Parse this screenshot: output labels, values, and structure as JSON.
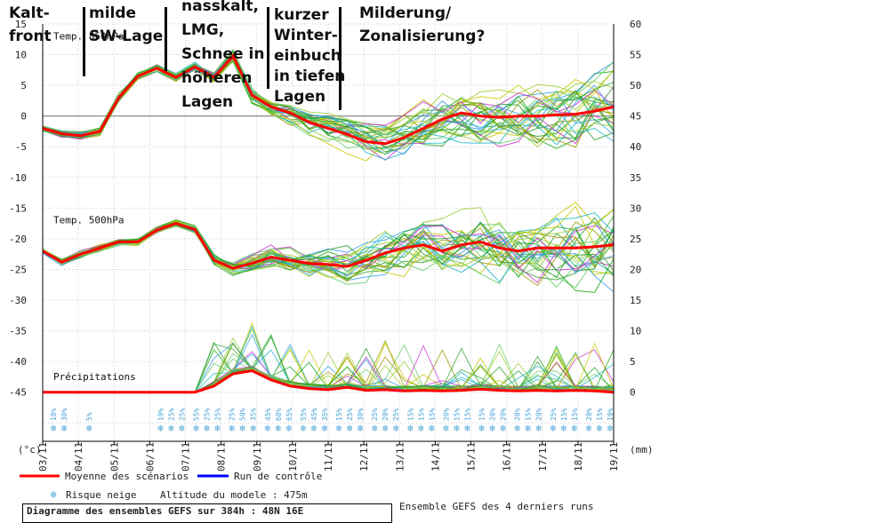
{
  "chart_data": {
    "type": "line",
    "title": "",
    "x": [
      "03/11",
      "04/11",
      "05/11",
      "06/11",
      "07/11",
      "08/11",
      "09/11",
      "10/11",
      "11/11",
      "12/11",
      "13/11",
      "14/11",
      "15/11",
      "16/11",
      "17/11",
      "18/11",
      "19/11"
    ],
    "left_axis": {
      "unit": "(°c)",
      "ylim": [
        -53,
        15
      ],
      "ticks": [
        15,
        10,
        5,
        0,
        -5,
        -10,
        -15,
        -20,
        -25,
        -30,
        -35,
        -40,
        -45
      ]
    },
    "right_axis": {
      "unit": "(mm)",
      "ticks": [
        60,
        55,
        50,
        45,
        40,
        35,
        30,
        25,
        20,
        15,
        10,
        5,
        0
      ]
    },
    "x_unit": "",
    "grid": true,
    "panels": [
      {
        "label": "Temp. 850hPa"
      },
      {
        "label": "Temp. 500hPa"
      },
      {
        "label": "Précipitations"
      }
    ],
    "series": [
      {
        "name": "Moyenne des scénarios",
        "color": "#ff0000",
        "t850": [
          -2,
          -2.9,
          -3.2,
          -2.5,
          3,
          6.5,
          7.8,
          6.3,
          8,
          6.3,
          9.8,
          3.4,
          1.5,
          0.5,
          -1,
          -2,
          -3,
          -4.2,
          -4.5,
          -3.5,
          -2,
          -0.5,
          0.5,
          0,
          -0.2,
          0,
          0,
          0.2,
          0.3,
          0.8,
          1.5
        ],
        "t500": [
          -22,
          -23.8,
          -22.5,
          -21.5,
          -20.5,
          -20.5,
          -18.6,
          -17.5,
          -18.5,
          -23.5,
          -24.8,
          -24,
          -23,
          -23.5,
          -24,
          -24.2,
          -24.5,
          -23.5,
          -22.3,
          -21.5,
          -21,
          -22,
          -21,
          -20.5,
          -21.5,
          -22,
          -21.5,
          -21.5,
          -21.5,
          -21.3,
          -21
        ],
        "precip_mm": [
          0,
          0,
          0,
          0,
          0,
          0,
          0,
          0,
          0,
          1,
          3,
          3.5,
          2,
          1,
          0.6,
          0.4,
          0.8,
          0.3,
          0.4,
          0.2,
          0.3,
          0.2,
          0.3,
          0.5,
          0.3,
          0.2,
          0.3,
          0.2,
          0.3,
          0.2,
          0
        ]
      },
      {
        "name": "Run de contrôle",
        "color": "#0000ff"
      }
    ],
    "snow_risk_label": "Risque neige",
    "snow_risk": [
      {
        "x": "03/11",
        "pct": [
          "10%",
          "30%"
        ]
      },
      {
        "x": "04/11",
        "pct": [
          "5%"
        ]
      },
      {
        "x": "06/11",
        "pct": [
          "10%",
          "25%",
          "25%"
        ]
      },
      {
        "x": "07/11",
        "pct": [
          "55%",
          "25%",
          "25%"
        ]
      },
      {
        "x": "08/11",
        "pct": [
          "25%",
          "50%",
          "35%"
        ]
      },
      {
        "x": "09/11",
        "pct": [
          "45%",
          "60%",
          "65%"
        ]
      },
      {
        "x": "10/11",
        "pct": [
          "55%",
          "45%",
          "35%"
        ]
      },
      {
        "x": "11/11",
        "pct": [
          "15%",
          "25%",
          "30%"
        ]
      },
      {
        "x": "12/11",
        "pct": [
          "25%",
          "20%",
          "25%"
        ]
      },
      {
        "x": "13/11",
        "pct": [
          "15%",
          "15%",
          "15%"
        ]
      },
      {
        "x": "14/11",
        "pct": [
          "20%",
          "15%",
          "15%"
        ]
      },
      {
        "x": "15/11",
        "pct": [
          "15%",
          "20%",
          "20%"
        ]
      },
      {
        "x": "16/11",
        "pct": [
          "20%",
          "15%",
          "20%"
        ]
      },
      {
        "x": "17/11",
        "pct": [
          "25%",
          "15%",
          "15%"
        ]
      },
      {
        "x": "18/11",
        "pct": [
          "20%",
          "15%",
          "10%"
        ]
      },
      {
        "x": "19/11",
        "pct": [
          "15%"
        ]
      }
    ],
    "annotations": [
      {
        "x": "03/11",
        "text": [
          "Kalt-",
          "front"
        ]
      },
      {
        "x": "04/11",
        "text": [
          "milde",
          "SW-Lage"
        ]
      },
      {
        "x": "06/11",
        "text": [
          "nasskalt,",
          "LMG,",
          "Schnee  in",
          "höheren",
          "Lagen"
        ]
      },
      {
        "x": "09/11",
        "text": [
          "kurzer",
          "Winter-",
          "einbuch",
          "in tiefen",
          "Lagen"
        ]
      },
      {
        "x": "11/11",
        "text": [
          "Milderung/",
          "Zonalisierung?"
        ]
      }
    ]
  },
  "footer": {
    "altitude": "Altitude du modele : 475m",
    "diagram_title": "Diagramme des ensembles GEFS sur 384h : 48N 16E",
    "ensemble": "Ensemble GEFS des 4 derniers runs"
  }
}
